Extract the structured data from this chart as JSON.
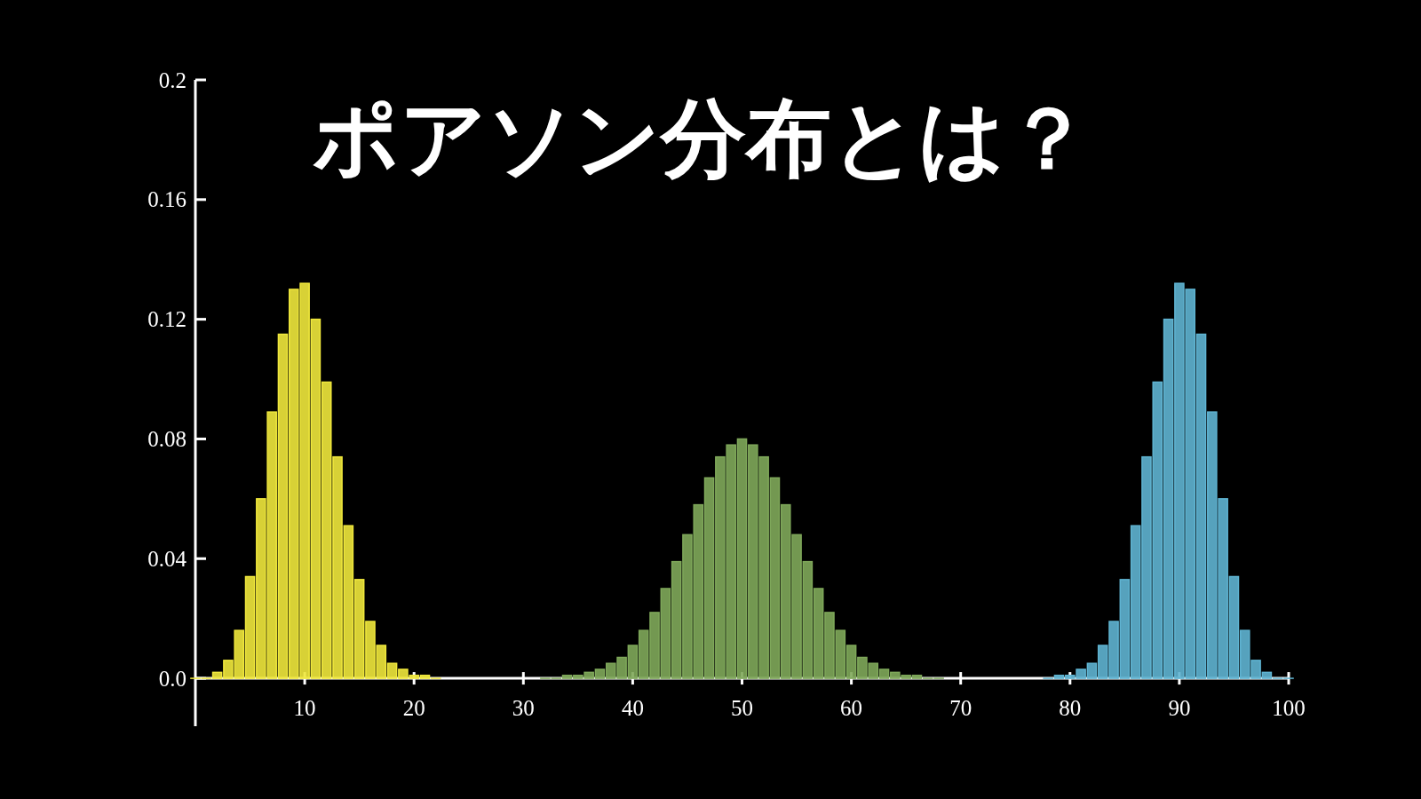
{
  "chart_data": {
    "type": "bar",
    "title": "ポアソン分布とは？",
    "xlim": [
      0,
      100
    ],
    "ylim": [
      -0.016,
      0.2
    ],
    "xticks": [
      10,
      20,
      30,
      40,
      50,
      60,
      70,
      80,
      90,
      100
    ],
    "yticks": [
      {
        "value": 0,
        "label": "0.0"
      },
      0.04,
      0.08,
      0.12,
      0.16,
      {
        "value": 0.2,
        "label": "0.2"
      }
    ],
    "series": [
      {
        "color": "#f0e83c",
        "x": [
          0,
          1,
          2,
          3,
          4,
          5,
          6,
          7,
          8,
          9,
          10,
          11,
          12,
          13,
          14,
          15,
          16,
          17,
          18,
          19,
          20,
          21,
          22
        ],
        "values": [
          0.0,
          0.0,
          0.002,
          0.006,
          0.016,
          0.034,
          0.06,
          0.089,
          0.115,
          0.13,
          0.132,
          0.12,
          0.099,
          0.074,
          0.051,
          0.033,
          0.019,
          0.011,
          0.005,
          0.003,
          0.001,
          0.001,
          0.0
        ]
      },
      {
        "color": "#7fa85a",
        "x": [
          32,
          33,
          34,
          35,
          36,
          37,
          38,
          39,
          40,
          41,
          42,
          43,
          44,
          45,
          46,
          47,
          48,
          49,
          50,
          51,
          52,
          53,
          54,
          55,
          56,
          57,
          58,
          59,
          60,
          61,
          62,
          63,
          64,
          65,
          66,
          67,
          68
        ],
        "values": [
          0.0,
          0.0,
          0.001,
          0.001,
          0.002,
          0.003,
          0.005,
          0.007,
          0.011,
          0.016,
          0.022,
          0.03,
          0.039,
          0.048,
          0.058,
          0.067,
          0.074,
          0.078,
          0.08,
          0.078,
          0.074,
          0.067,
          0.058,
          0.048,
          0.039,
          0.03,
          0.022,
          0.016,
          0.011,
          0.007,
          0.005,
          0.003,
          0.002,
          0.001,
          0.001,
          0.0,
          0.0
        ]
      },
      {
        "color": "#5fb4d2",
        "x": [
          78,
          79,
          80,
          81,
          82,
          83,
          84,
          85,
          86,
          87,
          88,
          89,
          90,
          91,
          92,
          93,
          94,
          95,
          96,
          97,
          98,
          99,
          100
        ],
        "values": [
          0.0,
          0.001,
          0.001,
          0.003,
          0.005,
          0.011,
          0.019,
          0.033,
          0.051,
          0.074,
          0.099,
          0.12,
          0.132,
          0.13,
          0.115,
          0.089,
          0.06,
          0.034,
          0.016,
          0.006,
          0.002,
          0.0,
          0.0
        ]
      }
    ]
  }
}
